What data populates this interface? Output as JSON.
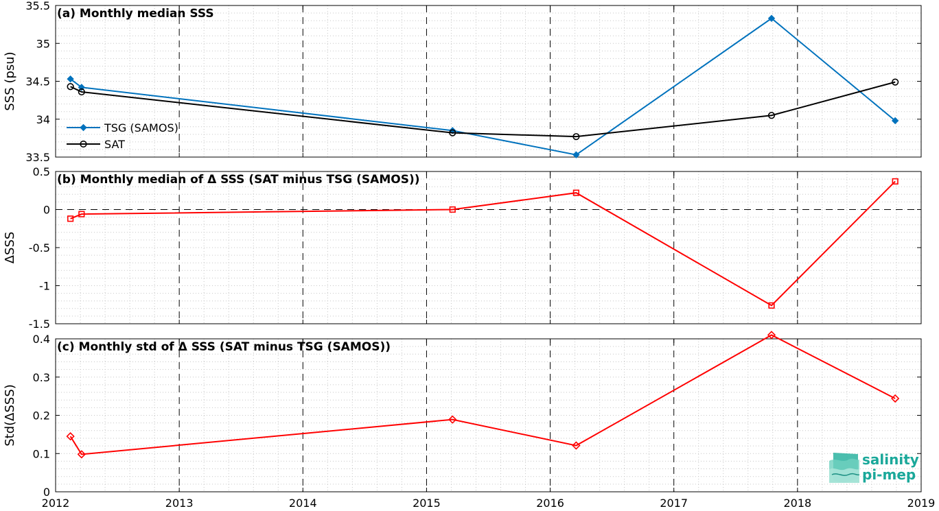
{
  "logo": {
    "line1": "salinity",
    "line2": "pi-mep",
    "color": "#1aa89a"
  },
  "chart_data": [
    {
      "type": "line",
      "title": "(a) Monthly median SSS",
      "ylabel": "SSS (psu)",
      "xlabel": "",
      "xlim": [
        2012,
        2019
      ],
      "ylim": [
        33.5,
        35.5
      ],
      "xticks": [
        2012,
        2013,
        2014,
        2015,
        2016,
        2017,
        2018,
        2019
      ],
      "xticklabels": [],
      "yticks": [
        33.5,
        34,
        34.5,
        35,
        35.5
      ],
      "yticklabels": [
        "33.5",
        "34",
        "34.5",
        "35",
        "35.5"
      ],
      "grid": "dotted minor grid with dashed yearly lines",
      "legend": "left-middle",
      "series": [
        {
          "name": "TSG (SAMOS)",
          "color": "#0072bd",
          "marker": "filled-diamond",
          "x": [
            2012.12,
            2012.21,
            2015.21,
            2016.21,
            2017.79,
            2018.79
          ],
          "y": [
            34.53,
            34.42,
            33.85,
            33.53,
            35.33,
            33.98
          ]
        },
        {
          "name": "SAT",
          "color": "#000000",
          "marker": "open-circle",
          "x": [
            2012.12,
            2012.21,
            2015.21,
            2016.21,
            2017.79,
            2018.79
          ],
          "y": [
            34.43,
            34.36,
            33.82,
            33.77,
            34.05,
            34.49
          ]
        }
      ]
    },
    {
      "type": "line",
      "title": "(b) Monthly median of Δ SSS (SAT minus TSG (SAMOS))",
      "ylabel": "ΔSSS",
      "xlabel": "",
      "xlim": [
        2012,
        2019
      ],
      "ylim": [
        -1.5,
        0.5
      ],
      "xticks": [
        2012,
        2013,
        2014,
        2015,
        2016,
        2017,
        2018,
        2019
      ],
      "xticklabels": [],
      "yticks": [
        -1.5,
        -1,
        -0.5,
        0,
        0.5
      ],
      "yticklabels": [
        "-1.5",
        "-1",
        "-0.5",
        "0",
        "0.5"
      ],
      "zero_line": true,
      "grid": "dotted minor grid with dashed yearly lines",
      "series": [
        {
          "color": "#ff0000",
          "marker": "open-square",
          "x": [
            2012.12,
            2012.21,
            2015.21,
            2016.21,
            2017.79,
            2018.79
          ],
          "y": [
            -0.12,
            -0.06,
            0.0,
            0.22,
            -1.26,
            0.37
          ]
        }
      ]
    },
    {
      "type": "line",
      "title": "(c) Monthly std of Δ SSS (SAT minus TSG (SAMOS))",
      "ylabel": "Std(ΔSSS)",
      "xlabel": "",
      "xlim": [
        2012,
        2019
      ],
      "ylim": [
        0,
        0.4
      ],
      "xticks": [
        2012,
        2013,
        2014,
        2015,
        2016,
        2017,
        2018,
        2019
      ],
      "xticklabels": [
        "2012",
        "2013",
        "2014",
        "2015",
        "2016",
        "2017",
        "2018",
        "2019"
      ],
      "yticks": [
        0,
        0.1,
        0.2,
        0.3,
        0.4
      ],
      "yticklabels": [
        "0",
        "0.1",
        "0.2",
        "0.3",
        "0.4"
      ],
      "grid": "dotted minor grid with dashed yearly lines",
      "series": [
        {
          "color": "#ff0000",
          "marker": "open-diamond",
          "x": [
            2012.12,
            2012.21,
            2015.21,
            2016.21,
            2017.79,
            2018.79
          ],
          "y": [
            0.145,
            0.098,
            0.189,
            0.121,
            0.41,
            0.244
          ]
        }
      ]
    }
  ]
}
